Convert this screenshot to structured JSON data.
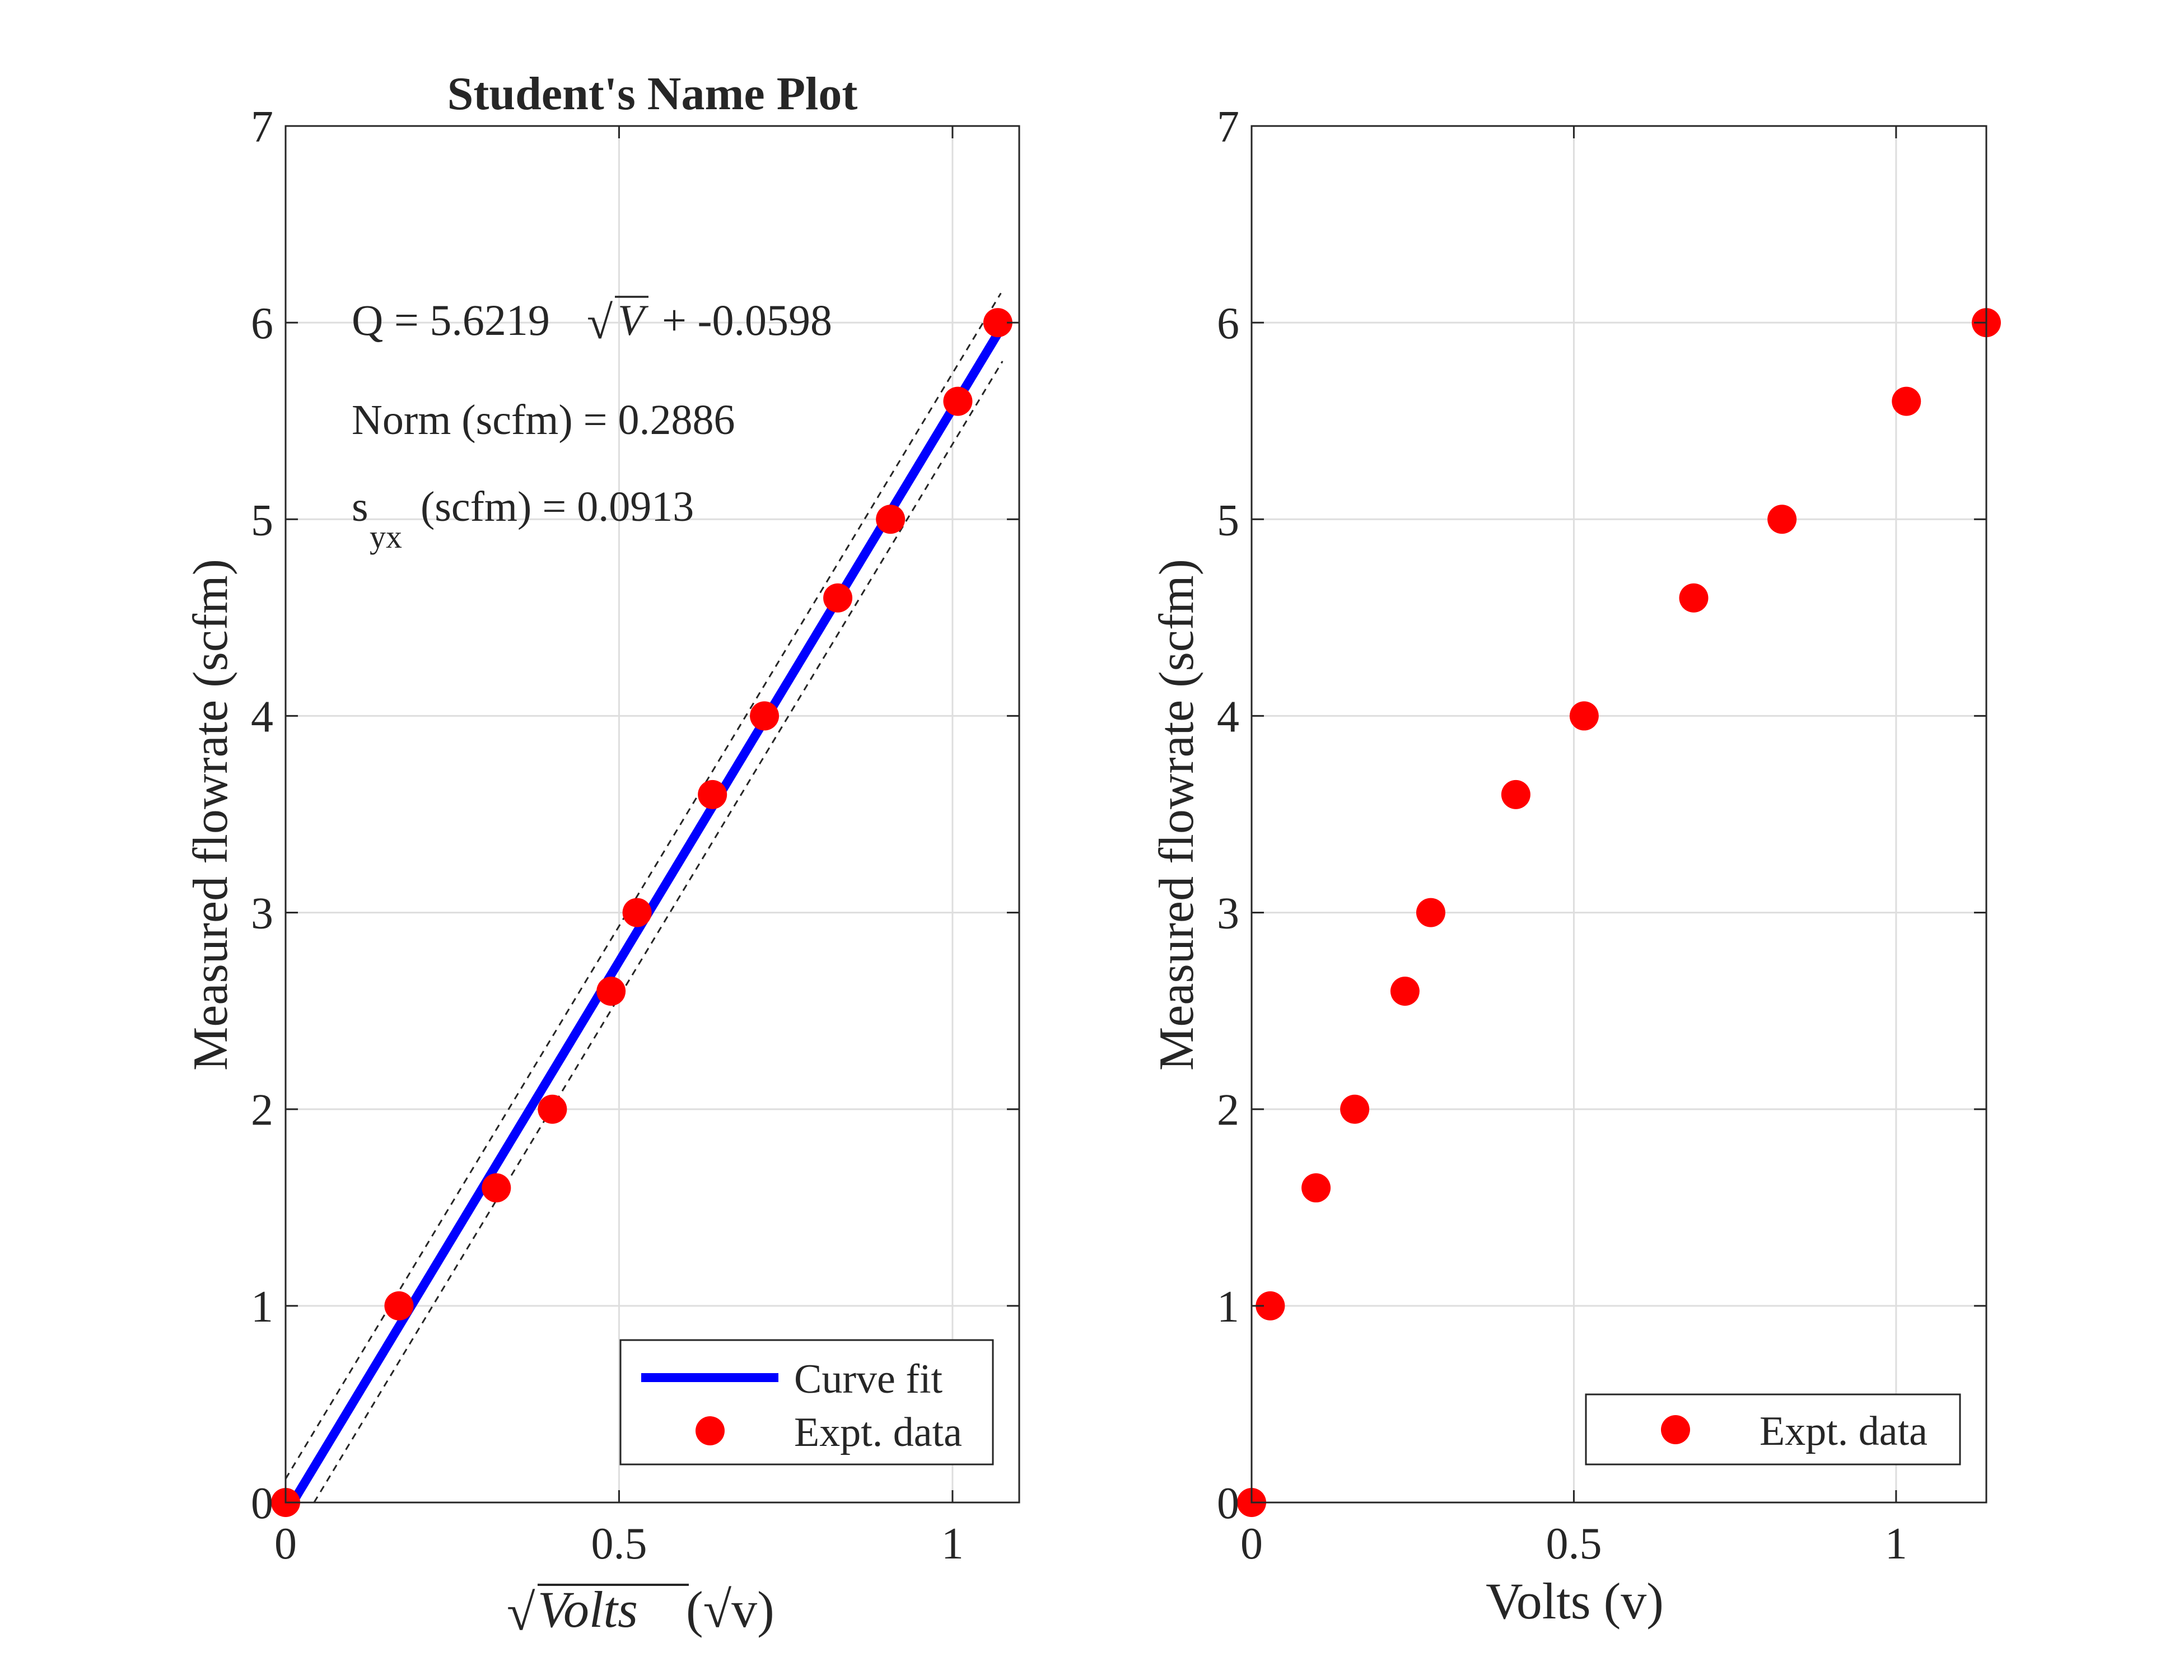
{
  "colors": {
    "fit_line": "#0000ff",
    "markers": "#ff0000",
    "confidence": "#262626",
    "grid": "#dedede",
    "axes": "#262626"
  },
  "chart_data": [
    {
      "type": "scatter",
      "title": "Student's Name Plot",
      "xlabel_prefix": "√",
      "xlabel_main": "Volts",
      "xlabel_unit": "(√v)",
      "ylabel": "Measured flowrate (scfm)",
      "xlim": [
        0,
        1.1
      ],
      "ylim": [
        0,
        7
      ],
      "xticks": [
        0,
        0.5,
        1
      ],
      "xtick_labels": [
        "0",
        "0.5",
        "1"
      ],
      "yticks": [
        0,
        1,
        2,
        3,
        4,
        5,
        6,
        7
      ],
      "ytick_labels": [
        "0",
        "1",
        "2",
        "3",
        "4",
        "5",
        "6",
        "7"
      ],
      "grid": true,
      "legend_placement": "bottom-right",
      "annotations": {
        "equation_lhs": "Q = 5.6219",
        "equation_sqrt_var": "V",
        "equation_rhs": "+ -0.0598",
        "norm": "Norm (scfm) = 0.2886",
        "syx_s": "s",
        "syx_sub": "yx",
        "syx_rest": " (scfm) = 0.0913"
      },
      "fit": {
        "slope": 5.6219,
        "intercept": -0.0598,
        "x_range": [
          0,
          1.07
        ]
      },
      "confidence_band": {
        "offset": 0.18
      },
      "series": [
        {
          "name": "Curve fit",
          "kind": "line"
        },
        {
          "name": "Expt. data",
          "kind": "markers",
          "x": [
            0,
            0.17,
            0.316,
            0.4,
            0.488,
            0.527,
            0.64,
            0.718,
            0.828,
            0.907,
            1.008,
            1.068
          ],
          "y": [
            0,
            1,
            1.6,
            2,
            2.6,
            3,
            3.6,
            4,
            4.6,
            5,
            5.6,
            6
          ]
        }
      ]
    },
    {
      "type": "scatter",
      "title": "",
      "xlabel": "Volts (v)",
      "ylabel": "Measured flowrate (scfm)",
      "xlim": [
        0,
        1.14
      ],
      "ylim": [
        0,
        7
      ],
      "xticks": [
        0,
        0.5,
        1
      ],
      "xtick_labels": [
        "0",
        "0.5",
        "1"
      ],
      "yticks": [
        0,
        1,
        2,
        3,
        4,
        5,
        6,
        7
      ],
      "ytick_labels": [
        "0",
        "1",
        "2",
        "3",
        "4",
        "5",
        "6",
        "7"
      ],
      "grid": true,
      "legend_placement": "bottom-right",
      "series": [
        {
          "name": "Expt. data",
          "kind": "markers",
          "x": [
            0,
            0.029,
            0.1,
            0.16,
            0.238,
            0.278,
            0.41,
            0.516,
            0.686,
            0.823,
            1.016,
            1.14
          ],
          "y": [
            0,
            1,
            1.6,
            2,
            2.6,
            3,
            3.6,
            4,
            4.6,
            5,
            5.6,
            6
          ]
        }
      ]
    }
  ]
}
